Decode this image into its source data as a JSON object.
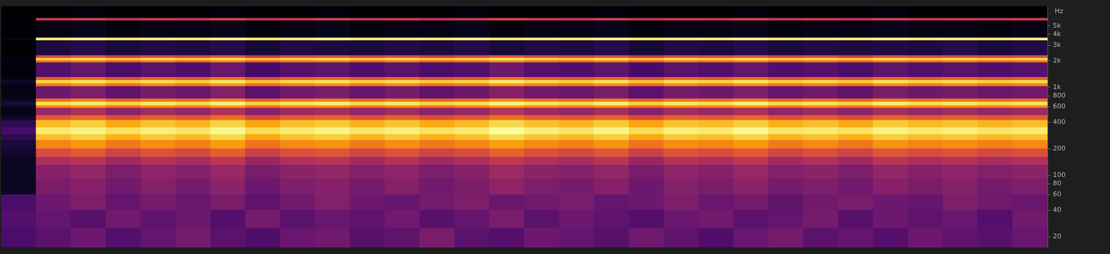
{
  "chart_data": {
    "type": "heatmap",
    "y_label": "Hz",
    "log": "y",
    "grid": false,
    "tick_labels": "y",
    "ylim": [
      15,
      8300
    ],
    "yticks": [
      20,
      40,
      60,
      80,
      100,
      200,
      400,
      600,
      800,
      {
        "value": 1000,
        "label": "1k"
      },
      {
        "value": 2000,
        "label": "2k"
      },
      {
        "value": 3000,
        "label": "3k"
      },
      {
        "value": 4000,
        "label": "4k"
      },
      {
        "value": 5000,
        "label": "5k"
      }
    ],
    "zlim": [
      -95,
      0
    ],
    "categories": [
      null,
      null,
      null,
      null,
      null,
      null,
      null,
      null,
      null,
      null,
      null,
      null,
      null,
      null,
      null,
      null,
      null,
      null,
      null,
      null,
      null,
      null,
      null,
      null,
      null,
      null,
      null,
      null,
      null,
      null
    ],
    "y_bins": [
      15,
      25,
      40,
      60,
      90,
      130,
      160,
      200,
      250,
      290,
      350,
      420,
      480,
      580,
      620,
      680,
      740,
      1020,
      1100,
      1200,
      1300,
      1900,
      2000,
      2150,
      2300,
      3400,
      3650,
      5700,
      6100,
      8300
    ],
    "cells": [
      [
        -74,
        -70,
        -66,
        -72,
        -68,
        -64,
        -70,
        -73,
        -67,
        -65,
        -71,
        -69,
        -63,
        -70,
        -72,
        -66,
        -68,
        -71,
        -65,
        -69,
        -73,
        -67,
        -64,
        -70,
        -68,
        -72,
        -66,
        -69,
        -71,
        -67
      ],
      [
        -72,
        -68,
        -71,
        -65,
        -69,
        -66,
        -72,
        -64,
        -70,
        -67,
        -69,
        -65,
        -71,
        -68,
        -63,
        -70,
        -66,
        -69,
        -72,
        -67,
        -65,
        -70,
        -68,
        -64,
        -71,
        -66,
        -69,
        -67,
        -72,
        -65
      ],
      [
        -74,
        -66,
        -62,
        -68,
        -64,
        -67,
        -63,
        -69,
        -65,
        -61,
        -66,
        -68,
        -64,
        -62,
        -67,
        -65,
        -63,
        -68,
        -66,
        -62,
        -67,
        -64,
        -69,
        -65,
        -63,
        -66,
        -68,
        -62,
        -65,
        -67
      ],
      [
        -90,
        -63,
        -60,
        -65,
        -61,
        -64,
        -59,
        -66,
        -62,
        -60,
        -64,
        -61,
        -65,
        -63,
        -58,
        -62,
        -64,
        -60,
        -66,
        -61,
        -63,
        -59,
        -64,
        -62,
        -65,
        -60,
        -63,
        -61,
        -64,
        -62
      ],
      [
        -90,
        -60,
        -57,
        -62,
        -58,
        -61,
        -56,
        -63,
        -59,
        -57,
        -61,
        -58,
        -62,
        -60,
        -55,
        -59,
        -61,
        -57,
        -63,
        -58,
        -60,
        -56,
        -61,
        -59,
        -62,
        -57,
        -60,
        -58,
        -61,
        -59
      ],
      [
        -90,
        -52,
        -49,
        -55,
        -50,
        -53,
        -48,
        -56,
        -51,
        -49,
        -54,
        -50,
        -55,
        -52,
        -47,
        -51,
        -53,
        -49,
        -56,
        -50,
        -52,
        -48,
        -54,
        -51,
        -55,
        -49,
        -52,
        -50,
        -53,
        -51
      ],
      [
        -88,
        -40,
        -36,
        -43,
        -38,
        -41,
        -35,
        -44,
        -39,
        -37,
        -42,
        -38,
        -43,
        -40,
        -34,
        -39,
        -41,
        -37,
        -44,
        -38,
        -40,
        -36,
        -42,
        -39,
        -43,
        -37,
        -40,
        -38,
        -41,
        -39
      ],
      [
        -85,
        -26,
        -22,
        -29,
        -24,
        -27,
        -21,
        -30,
        -25,
        -23,
        -28,
        -24,
        -29,
        -26,
        -20,
        -25,
        -27,
        -23,
        -30,
        -24,
        -26,
        -22,
        -28,
        -25,
        -29,
        -23,
        -26,
        -24,
        -27,
        -25
      ],
      [
        -80,
        -14,
        -10,
        -17,
        -12,
        -15,
        -9,
        -18,
        -13,
        -11,
        -16,
        -12,
        -17,
        -14,
        -8,
        -13,
        -15,
        -11,
        -18,
        -12,
        -14,
        -10,
        -16,
        -13,
        -17,
        -11,
        -14,
        -12,
        -15,
        -13
      ],
      [
        -75,
        -5,
        -3,
        -7,
        -4,
        -6,
        -2,
        -8,
        -5,
        -3,
        -6,
        -4,
        -7,
        -5,
        -1,
        -4,
        -6,
        -3,
        -8,
        -4,
        -5,
        -2,
        -6,
        -5,
        -7,
        -3,
        -5,
        -4,
        -6,
        -5
      ],
      [
        -80,
        -15,
        -11,
        -18,
        -13,
        -16,
        -10,
        -19,
        -14,
        -12,
        -17,
        -13,
        -18,
        -15,
        -9,
        -14,
        -16,
        -12,
        -19,
        -13,
        -15,
        -11,
        -17,
        -14,
        -18,
        -12,
        -15,
        -13,
        -16,
        -14
      ],
      [
        -88,
        -36,
        -32,
        -39,
        -34,
        -37,
        -31,
        -40,
        -35,
        -33,
        -38,
        -34,
        -39,
        -36,
        -30,
        -35,
        -37,
        -33,
        -40,
        -34,
        -36,
        -32,
        -38,
        -35,
        -39,
        -33,
        -36,
        -34,
        -37,
        -35
      ],
      [
        -92,
        -56,
        -52,
        -59,
        -54,
        -57,
        -51,
        -60,
        -55,
        -53,
        -58,
        -54,
        -59,
        -56,
        -50,
        -55,
        -57,
        -53,
        -60,
        -54,
        -56,
        -52,
        -58,
        -55,
        -59,
        -53,
        -56,
        -54,
        -57,
        -55
      ],
      [
        -90,
        -26,
        -22,
        -29,
        -24,
        -27,
        -21,
        -30,
        -25,
        -23,
        -28,
        -24,
        -29,
        -26,
        -20,
        -25,
        -27,
        -23,
        -30,
        -24,
        -26,
        -22,
        -28,
        -25,
        -29,
        -23,
        -26,
        -24,
        -27,
        -25
      ],
      [
        -85,
        -8,
        -5,
        -10,
        -6,
        -9,
        -4,
        -11,
        -7,
        -5,
        -9,
        -6,
        -10,
        -8,
        -3,
        -7,
        -9,
        -5,
        -11,
        -6,
        -8,
        -4,
        -9,
        -7,
        -10,
        -5,
        -8,
        -6,
        -9,
        -7
      ],
      [
        -90,
        -30,
        -26,
        -33,
        -28,
        -31,
        -25,
        -34,
        -29,
        -27,
        -32,
        -28,
        -33,
        -30,
        -24,
        -29,
        -31,
        -27,
        -34,
        -28,
        -30,
        -26,
        -32,
        -29,
        -33,
        -27,
        -30,
        -28,
        -31,
        -29
      ],
      [
        -92,
        -66,
        -62,
        -69,
        -64,
        -67,
        -61,
        -70,
        -65,
        -63,
        -68,
        -64,
        -69,
        -66,
        -60,
        -65,
        -67,
        -63,
        -70,
        -64,
        -66,
        -62,
        -68,
        -65,
        -69,
        -63,
        -66,
        -64,
        -67,
        -65
      ],
      [
        -92,
        -28,
        -24,
        -31,
        -26,
        -29,
        -23,
        -32,
        -27,
        -25,
        -30,
        -26,
        -31,
        -28,
        -22,
        -27,
        -29,
        -25,
        -32,
        -26,
        -28,
        -24,
        -30,
        -27,
        -31,
        -25,
        -28,
        -26,
        -29,
        -27
      ],
      [
        -88,
        -10,
        -7,
        -12,
        -8,
        -11,
        -6,
        -13,
        -9,
        -7,
        -11,
        -8,
        -12,
        -10,
        -5,
        -9,
        -11,
        -7,
        -13,
        -8,
        -10,
        -6,
        -11,
        -9,
        -12,
        -7,
        -10,
        -8,
        -11,
        -9
      ],
      [
        -92,
        -35,
        -31,
        -38,
        -33,
        -36,
        -30,
        -39,
        -34,
        -32,
        -37,
        -33,
        -38,
        -35,
        -29,
        -34,
        -36,
        -32,
        -39,
        -33,
        -35,
        -31,
        -37,
        -34,
        -38,
        -32,
        -35,
        -33,
        -36,
        -34
      ],
      [
        -94,
        -72,
        -68,
        -74,
        -70,
        -73,
        -67,
        -75,
        -71,
        -69,
        -73,
        -70,
        -74,
        -72,
        -66,
        -71,
        -73,
        -69,
        -75,
        -70,
        -72,
        -68,
        -73,
        -71,
        -74,
        -69,
        -72,
        -70,
        -73,
        -71
      ],
      [
        -94,
        -32,
        -28,
        -35,
        -30,
        -33,
        -27,
        -36,
        -31,
        -29,
        -34,
        -30,
        -35,
        -32,
        -26,
        -31,
        -33,
        -29,
        -36,
        -30,
        -32,
        -28,
        -34,
        -31,
        -35,
        -29,
        -32,
        -30,
        -33,
        -31
      ],
      [
        -92,
        -12,
        -9,
        -14,
        -10,
        -13,
        -8,
        -15,
        -11,
        -9,
        -13,
        -10,
        -14,
        -12,
        -7,
        -11,
        -13,
        -9,
        -15,
        -10,
        -12,
        -8,
        -13,
        -11,
        -14,
        -9,
        -12,
        -10,
        -13,
        -11
      ],
      [
        -94,
        -42,
        -38,
        -45,
        -40,
        -43,
        -37,
        -46,
        -41,
        -39,
        -44,
        -40,
        -45,
        -42,
        -36,
        -41,
        -43,
        -39,
        -46,
        -40,
        -42,
        -38,
        -44,
        -41,
        -45,
        -39,
        -42,
        -40,
        -43,
        -41
      ],
      [
        -95,
        -84,
        -82,
        -85,
        -83,
        -84,
        -82,
        -86,
        -83,
        -84,
        -85,
        -83,
        -84,
        -82,
        -85,
        -83,
        -84,
        -82,
        -86,
        -83,
        -84,
        -82,
        -85,
        -83,
        -84,
        -83,
        -84,
        -82,
        -85,
        -83
      ],
      [
        -92,
        -4,
        -3,
        -5,
        -4,
        -4,
        -3,
        -5,
        -4,
        -3,
        -5,
        -4,
        -4,
        -3,
        -5,
        -4,
        -4,
        -3,
        -5,
        -4,
        -4,
        -3,
        -5,
        -4,
        -4,
        -3,
        -4,
        -4,
        -5,
        -4
      ],
      [
        -95,
        -92,
        -91,
        -93,
        -92,
        -92,
        -91,
        -93,
        -92,
        -91,
        -93,
        -92,
        -92,
        -91,
        -93,
        -92,
        -92,
        -91,
        -93,
        -92,
        -92,
        -91,
        -93,
        -92,
        -92,
        -91,
        -92,
        -92,
        -93,
        -92
      ],
      [
        -95,
        -46,
        -44,
        -48,
        -45,
        -47,
        -43,
        -48,
        -46,
        -44,
        -47,
        -45,
        -48,
        -46,
        -43,
        -45,
        -47,
        -44,
        -48,
        -45,
        -46,
        -43,
        -47,
        -45,
        -48,
        -44,
        -46,
        -45,
        -47,
        -45
      ],
      [
        -96,
        -95,
        -94,
        -96,
        -95,
        -95,
        -94,
        -96,
        -95,
        -94,
        -96,
        -95,
        -95,
        -94,
        -96,
        -95,
        -95,
        -94,
        -96,
        -95,
        -95,
        -94,
        -96,
        -95,
        -95,
        -94,
        -95,
        -95,
        -96,
        -95
      ]
    ]
  }
}
